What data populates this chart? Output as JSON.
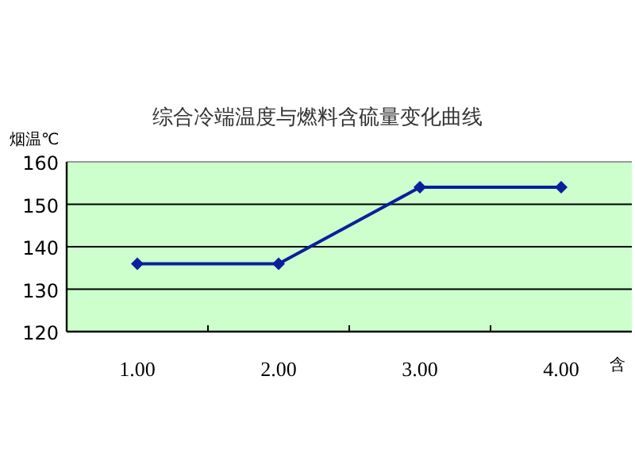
{
  "chart_data": {
    "type": "line",
    "title": "综合冷端温度与燃料含硫量变化曲线",
    "ylabel": "烟温℃",
    "xlabel": "含",
    "categories": [
      "1.00",
      "2.00",
      "3.00",
      "4.00"
    ],
    "series": [
      {
        "color": "#0a1f9c",
        "values": [
          136,
          136,
          154,
          154
        ]
      }
    ],
    "ylim": [
      120,
      160
    ],
    "yticks": [
      120,
      130,
      140,
      150,
      160
    ],
    "grid": "y",
    "marker": "diamond"
  }
}
